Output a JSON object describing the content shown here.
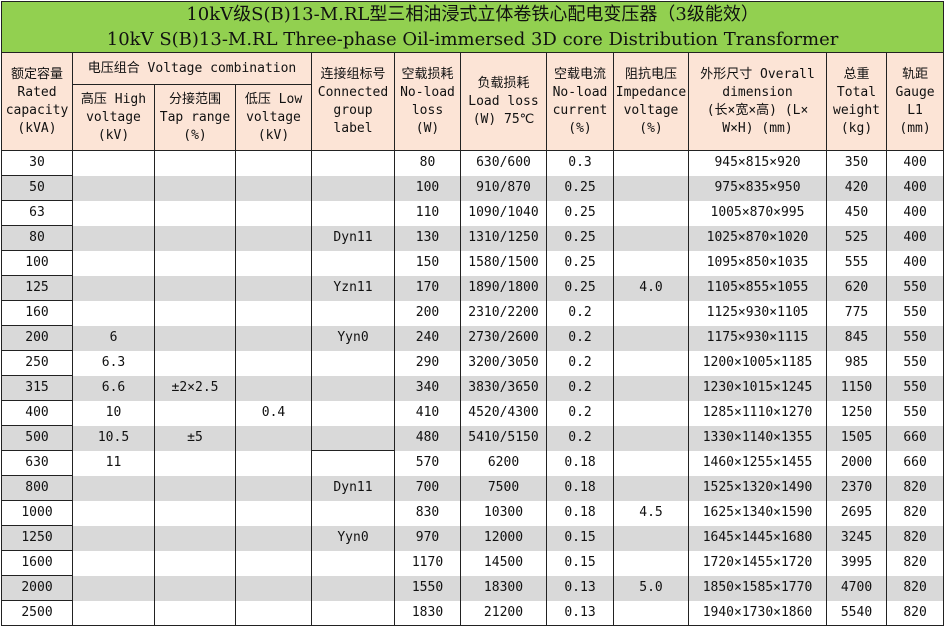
{
  "title": {
    "zh": "10kV级S(B)13-M.RL型三相油浸式立体卷铁心配电变压器（3级能效）",
    "en": "10kV S(B)13-M.RL Three-phase Oil-immersed 3D core Distribution Transformer"
  },
  "headers": {
    "capacity": [
      "额定容量",
      "Rated",
      "capacity",
      "(kVA)"
    ],
    "voltage_combination": "电压组合 Voltage combination",
    "high_voltage": [
      "高压 High",
      "voltage",
      "(kV)"
    ],
    "tap_range": [
      "分接范围",
      "Tap range",
      "(%)"
    ],
    "low_voltage": [
      "低压 Low",
      "voltage",
      "(kV)"
    ],
    "connection": [
      "连接组标号",
      "Connected",
      "group",
      "label"
    ],
    "no_load_loss": [
      "空载损耗",
      "No-load",
      "loss",
      "(W)"
    ],
    "load_loss": [
      "负载损耗",
      "Load loss",
      "(W) 75℃"
    ],
    "no_load_current": [
      "空载电流",
      "No-load",
      "current",
      "(%)"
    ],
    "impedance": [
      "阻抗电压",
      "Impedance",
      "voltage",
      "(%)"
    ],
    "dimension": [
      "外形尺寸 Overall",
      "dimension",
      "(长×宽×高) (L×",
      "W×H) (mm)"
    ],
    "weight": [
      "总重",
      "Total",
      "weight",
      "(kg)"
    ],
    "gauge": [
      "轨距",
      "Gauge",
      "L1",
      "(mm)"
    ]
  },
  "rows": [
    [
      "30",
      "",
      "",
      "",
      "",
      "80",
      "630/600",
      "0.3",
      "",
      "945×815×920",
      "350",
      "400"
    ],
    [
      "50",
      "",
      "",
      "",
      "",
      "100",
      "910/870",
      "0.25",
      "",
      "975×835×950",
      "420",
      "400"
    ],
    [
      "63",
      "",
      "",
      "",
      "",
      "110",
      "1090/1040",
      "0.25",
      "",
      "1005×870×995",
      "450",
      "400"
    ],
    [
      "80",
      "",
      "",
      "",
      "Dyn11",
      "130",
      "1310/1250",
      "0.25",
      "",
      "1025×870×1020",
      "525",
      "400"
    ],
    [
      "100",
      "",
      "",
      "",
      "",
      "150",
      "1580/1500",
      "0.25",
      "",
      "1095×850×1035",
      "555",
      "400"
    ],
    [
      "125",
      "",
      "",
      "",
      "Yzn11",
      "170",
      "1890/1800",
      "0.25",
      "4.0",
      "1105×855×1055",
      "620",
      "550"
    ],
    [
      "160",
      "",
      "",
      "",
      "",
      "200",
      "2310/2200",
      "0.2",
      "",
      "1125×930×1105",
      "775",
      "550"
    ],
    [
      "200",
      "6",
      "",
      "",
      "Yyn0",
      "240",
      "2730/2600",
      "0.2",
      "",
      "1175×930×1115",
      "845",
      "550"
    ],
    [
      "250",
      "6.3",
      "",
      "",
      "",
      "290",
      "3200/3050",
      "0.2",
      "",
      "1200×1005×1185",
      "985",
      "550"
    ],
    [
      "315",
      "6.6",
      "±2×2.5",
      "",
      "",
      "340",
      "3830/3650",
      "0.2",
      "",
      "1230×1015×1245",
      "1150",
      "550"
    ],
    [
      "400",
      "10",
      "",
      "0.4",
      "",
      "410",
      "4520/4300",
      "0.2",
      "",
      "1285×1110×1270",
      "1250",
      "550"
    ],
    [
      "500",
      "10.5",
      "±5",
      "",
      "",
      "480",
      "5410/5150",
      "0.2",
      "",
      "1330×1140×1355",
      "1505",
      "660"
    ],
    [
      "630",
      "11",
      "",
      "",
      "",
      "570",
      "6200",
      "0.18",
      "",
      "1460×1255×1455",
      "2000",
      "660"
    ],
    [
      "800",
      "",
      "",
      "",
      "Dyn11",
      "700",
      "7500",
      "0.18",
      "",
      "1525×1320×1490",
      "2370",
      "820"
    ],
    [
      "1000",
      "",
      "",
      "",
      "",
      "830",
      "10300",
      "0.18",
      "4.5",
      "1625×1340×1590",
      "2695",
      "820"
    ],
    [
      "1250",
      "",
      "",
      "",
      "Yyn0",
      "970",
      "12000",
      "0.15",
      "",
      "1645×1445×1680",
      "3245",
      "820"
    ],
    [
      "1600",
      "",
      "",
      "",
      "",
      "1170",
      "14500",
      "0.15",
      "",
      "1720×1455×1720",
      "3995",
      "820"
    ],
    [
      "2000",
      "",
      "",
      "",
      "",
      "1550",
      "18300",
      "0.13",
      "5.0",
      "1850×1585×1770",
      "4700",
      "820"
    ],
    [
      "2500",
      "",
      "",
      "",
      "",
      "1830",
      "21200",
      "0.13",
      "",
      "1940×1730×1860",
      "5540",
      "820"
    ]
  ],
  "colors": {
    "title_bg": "#92d050",
    "header_bg": "#fce4d6",
    "stripe": "#d9d9d9"
  }
}
